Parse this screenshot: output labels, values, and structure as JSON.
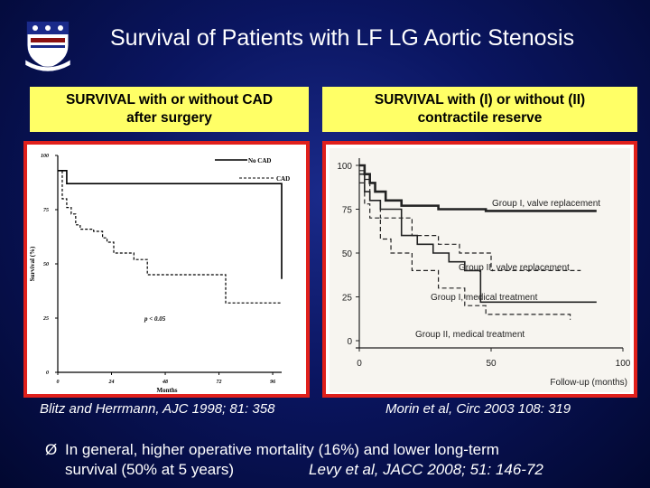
{
  "slide": {
    "title": "Survival of Patients with LF LG Aortic Stenosis",
    "logo_icon": "university-shield-logo"
  },
  "left_panel": {
    "subtitle_line1": "SURVIVAL with or without CAD",
    "subtitle_line2": "after surgery",
    "citation": "Blitz and Herrmann, AJC 1998; 81: 358"
  },
  "right_panel": {
    "subtitle_line1": "SURVIVAL with (I) or without (II)",
    "subtitle_line2": "contractile reserve",
    "citation": "Morin et al, Circ 2003 108: 319"
  },
  "bullet": {
    "marker": "Ø",
    "line1": "In general, higher operative mortality (16%) and lower long-term",
    "line2": "survival (50% at 5 years)",
    "reference": "Levy et al, JACC 2008; 51: 146-72"
  },
  "chart_data": [
    {
      "type": "line",
      "step": true,
      "xlabel": "Months",
      "ylabel": "Survival (%)",
      "xlim": [
        0,
        100
      ],
      "ylim": [
        0,
        100
      ],
      "xticks": [
        "0",
        "24",
        "48",
        "72",
        "96"
      ],
      "yticks": [
        "0",
        "25",
        "50",
        "75",
        "100"
      ],
      "annotation": "p < 0.05",
      "legend_position": "top-right",
      "series": [
        {
          "name": "No CAD",
          "style": "solid",
          "x": [
            0,
            2,
            4,
            82,
            100
          ],
          "y": [
            93,
            93,
            87,
            87,
            43
          ]
        },
        {
          "name": "CAD",
          "style": "dashed",
          "x": [
            0,
            2,
            4,
            6,
            8,
            10,
            16,
            20,
            22,
            25,
            34,
            40,
            73,
            75,
            100
          ],
          "y": [
            93,
            80,
            76,
            73,
            68,
            66,
            65,
            62,
            60,
            55,
            52,
            45,
            45,
            32,
            32
          ]
        }
      ]
    },
    {
      "type": "line",
      "step": true,
      "xlabel": "Follow-up (months)",
      "ylabel": "",
      "xlim": [
        0,
        100
      ],
      "ylim": [
        0,
        100
      ],
      "xticks": [
        "0",
        "50",
        "100"
      ],
      "yticks": [
        "0",
        "25",
        "50",
        "75",
        "100"
      ],
      "legend_position": "inline",
      "series": [
        {
          "name": "Group I, valve replacement",
          "style": "solid-thick",
          "x": [
            0,
            2,
            4,
            6,
            10,
            16,
            30,
            48,
            90
          ],
          "y": [
            100,
            95,
            90,
            85,
            80,
            77,
            75,
            74,
            74
          ]
        },
        {
          "name": "Group II, valve replacement",
          "style": "dashed",
          "x": [
            0,
            2,
            4,
            8,
            20,
            30,
            38,
            50,
            84
          ],
          "y": [
            97,
            92,
            80,
            70,
            60,
            55,
            50,
            40,
            40
          ]
        },
        {
          "name": "Group I, medical treatment",
          "style": "solid",
          "x": [
            0,
            2,
            4,
            8,
            16,
            22,
            28,
            34,
            40,
            46,
            90
          ],
          "y": [
            95,
            85,
            80,
            75,
            60,
            55,
            50,
            45,
            40,
            22,
            22
          ]
        },
        {
          "name": "Group II, medical treatment",
          "style": "dashed",
          "x": [
            0,
            2,
            4,
            8,
            12,
            20,
            30,
            40,
            48,
            80
          ],
          "y": [
            90,
            78,
            70,
            58,
            50,
            40,
            30,
            20,
            15,
            12
          ]
        }
      ]
    }
  ]
}
